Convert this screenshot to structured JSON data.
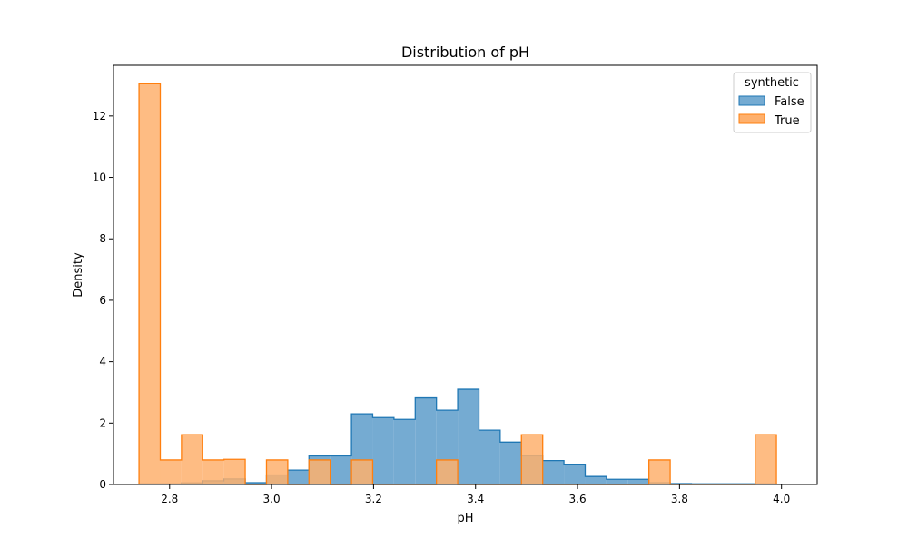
{
  "chart_data": {
    "type": "histogram",
    "title": "Distribution of pH",
    "xlabel": "pH",
    "ylabel": "Density",
    "xlim": [
      2.69,
      4.07
    ],
    "ylim": [
      0,
      13.65
    ],
    "x_ticks": [
      2.8,
      3.0,
      3.2,
      3.4,
      3.6,
      3.8,
      4.0
    ],
    "x_tick_labels": [
      "2.8",
      "3.0",
      "3.2",
      "3.4",
      "3.6",
      "3.8",
      "4.0"
    ],
    "y_ticks": [
      0,
      2,
      4,
      6,
      8,
      10,
      12
    ],
    "y_tick_labels": [
      "0",
      "2",
      "4",
      "6",
      "8",
      "10",
      "12"
    ],
    "grid": false,
    "legend": {
      "title": "synthetic",
      "placement": "top-right"
    },
    "bin_edges": [
      2.74,
      2.7817,
      2.8233,
      2.865,
      2.9067,
      2.9483,
      2.99,
      3.0317,
      3.0733,
      3.115,
      3.1567,
      3.1983,
      3.24,
      3.2817,
      3.3233,
      3.365,
      3.4067,
      3.4483,
      3.49,
      3.5317,
      3.5733,
      3.615,
      3.6567,
      3.6983,
      3.74,
      3.7817,
      3.8233,
      3.865,
      3.9067,
      3.9483,
      3.99
    ],
    "series": [
      {
        "name": "False",
        "color": "#1f77b4",
        "fill": "#75abd2",
        "values": [
          0.02,
          0.02,
          0.05,
          0.12,
          0.18,
          0.06,
          0.31,
          0.47,
          0.93,
          0.93,
          2.3,
          2.18,
          2.12,
          2.82,
          2.42,
          3.1,
          1.77,
          1.38,
          0.93,
          0.78,
          0.66,
          0.26,
          0.17,
          0.17,
          0.06,
          0.03,
          0.02,
          0.02,
          0.02,
          0.02
        ]
      },
      {
        "name": "True",
        "color": "#ff7f0e",
        "fill": "#feb06d",
        "values": [
          13.05,
          0.8,
          1.62,
          0.8,
          0.82,
          0,
          0.8,
          0,
          0.8,
          0,
          0.8,
          0,
          0,
          0,
          0.8,
          0,
          0,
          0,
          1.62,
          0,
          0,
          0,
          0,
          0,
          0.8,
          0,
          0,
          0,
          0,
          1.62
        ]
      }
    ]
  }
}
